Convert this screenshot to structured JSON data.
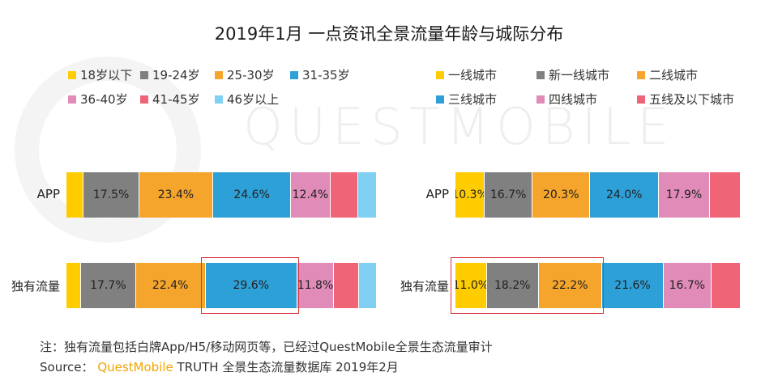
{
  "title": "2019年1月 一点资讯全景流量年龄与城际分布",
  "watermark": "QUESTMOBILE",
  "chart_data": [
    {
      "type": "bar",
      "orientation": "horizontal",
      "stacked": true,
      "percent": true,
      "categories": [
        "APP",
        "独有流量"
      ],
      "series": [
        {
          "name": "18岁以下",
          "color": "#ffcc00",
          "values": [
            5.5,
            4.7
          ]
        },
        {
          "name": "19-24岁",
          "color": "#808080",
          "values": [
            17.5,
            17.7
          ]
        },
        {
          "name": "25-30岁",
          "color": "#f5a42c",
          "values": [
            23.4,
            22.4
          ]
        },
        {
          "name": "31-35岁",
          "color": "#2ea0d8",
          "values": [
            24.6,
            29.6
          ]
        },
        {
          "name": "36-40岁",
          "color": "#e08bb8",
          "values": [
            12.4,
            11.8
          ]
        },
        {
          "name": "41-45岁",
          "color": "#f06478",
          "values": [
            8.7,
            8.0
          ]
        },
        {
          "name": "46岁以上",
          "color": "#7fd0f2",
          "values": [
            6.0,
            5.8
          ]
        }
      ],
      "value_labels": [
        [
          "",
          "17.5%",
          "23.4%",
          "24.6%",
          "12.4%",
          "",
          ""
        ],
        [
          "",
          "17.7%",
          "22.4%",
          "29.6%",
          "11.8%",
          "",
          ""
        ]
      ],
      "highlight": {
        "category": "独有流量",
        "series": "31-35岁"
      }
    },
    {
      "type": "bar",
      "orientation": "horizontal",
      "stacked": true,
      "percent": true,
      "categories": [
        "APP",
        "独有流量"
      ],
      "series": [
        {
          "name": "一线城市",
          "color": "#ffcc00",
          "values": [
            10.3,
            11.0
          ]
        },
        {
          "name": "新一线城市",
          "color": "#808080",
          "values": [
            16.7,
            18.2
          ]
        },
        {
          "name": "二线城市",
          "color": "#f5a42c",
          "values": [
            20.3,
            22.2
          ]
        },
        {
          "name": "三线城市",
          "color": "#2ea0d8",
          "values": [
            24.0,
            21.6
          ]
        },
        {
          "name": "四线城市",
          "color": "#e08bb8",
          "values": [
            17.9,
            16.7
          ]
        },
        {
          "name": "五线及以下城市",
          "color": "#f06478",
          "values": [
            10.8,
            10.3
          ]
        }
      ],
      "value_labels": [
        [
          "10.3%",
          "16.7%",
          "20.3%",
          "24.0%",
          "17.9%",
          ""
        ],
        [
          "11.0%",
          "18.2%",
          "22.2%",
          "21.6%",
          "16.7%",
          ""
        ]
      ],
      "highlight": {
        "category": "独有流量",
        "series_range": [
          "一线城市",
          "二线城市"
        ]
      }
    }
  ],
  "footnote": {
    "note": "注：独有流量包括白牌App/H5/移动网页等，已经过QuestMobile全景生态流量审计",
    "source_prefix": "Source：",
    "source_brand": "QuestMobile",
    "source_rest": " TRUTH 全景生态流量数据库 2019年2月"
  }
}
